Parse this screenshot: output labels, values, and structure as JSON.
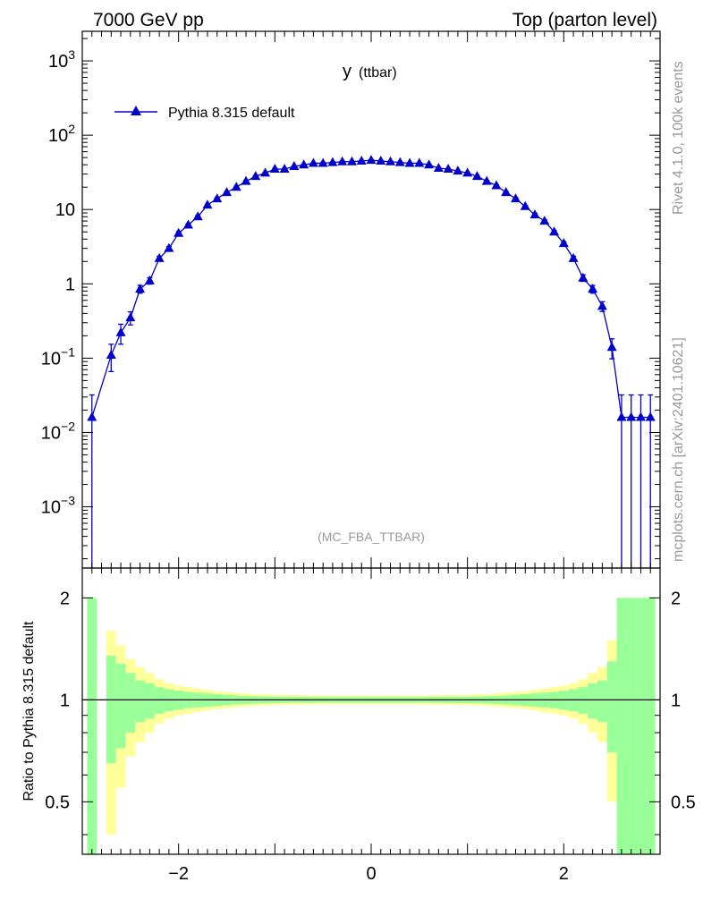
{
  "header": {
    "left": "7000 GeV pp",
    "right": "Top (parton level)"
  },
  "side_labels": {
    "rivet": "Rivet 4.1.0,  100k events",
    "mcplots": "mcplots.cern.ch [arXiv:2401.10621]"
  },
  "analysis_tag": "(MC_FBA_TTBAR)",
  "colors": {
    "series": "#0000cc",
    "band_inner": "#99ff99",
    "band_outer": "#ffff99",
    "axis": "#000000",
    "tag": "#999999"
  },
  "chart_data": [
    {
      "type": "line",
      "title_main": "y",
      "title_sub": "(ttbar)",
      "yscale": "log",
      "xlim": [
        -3.0,
        3.0
      ],
      "ylim": [
        0.00015,
        2500
      ],
      "y_ticks": [
        "10^3",
        "10^2",
        "10",
        "1",
        "10^-1",
        "10^-2",
        "10^-3"
      ],
      "legend": {
        "label": "Pythia 8.315 default",
        "position": "top-left"
      },
      "series": [
        {
          "name": "Pythia 8.315 default",
          "x": [
            -2.9,
            -2.7,
            -2.6,
            -2.5,
            -2.4,
            -2.3,
            -2.2,
            -2.1,
            -2.0,
            -1.9,
            -1.8,
            -1.7,
            -1.6,
            -1.5,
            -1.4,
            -1.3,
            -1.2,
            -1.1,
            -1.0,
            -0.9,
            -0.8,
            -0.7,
            -0.6,
            -0.5,
            -0.4,
            -0.3,
            -0.2,
            -0.1,
            0.0,
            0.1,
            0.2,
            0.3,
            0.4,
            0.5,
            0.6,
            0.7,
            0.8,
            0.9,
            1.0,
            1.1,
            1.2,
            1.3,
            1.4,
            1.5,
            1.6,
            1.7,
            1.8,
            1.9,
            2.0,
            2.1,
            2.2,
            2.3,
            2.4,
            2.5,
            2.6,
            2.7,
            2.8,
            2.9
          ],
          "values": [
            0.016,
            0.11,
            0.22,
            0.35,
            0.85,
            1.1,
            2.2,
            3.0,
            4.8,
            6.2,
            8.0,
            11.5,
            14.0,
            17.0,
            20.0,
            24.0,
            28.0,
            31.0,
            35.0,
            35.0,
            38.0,
            40.0,
            42.0,
            42.0,
            43.0,
            44.0,
            44.0,
            45.0,
            46.0,
            45.0,
            44.0,
            43.0,
            42.0,
            42.0,
            40.0,
            36.0,
            35.0,
            33.0,
            31.0,
            28.0,
            24.0,
            21.0,
            17.0,
            14.0,
            11.0,
            8.5,
            7.0,
            5.0,
            3.5,
            2.2,
            1.2,
            0.85,
            0.5,
            0.14,
            0.016,
            0.016,
            0.016,
            0.016
          ],
          "rel_err": [
            1.0,
            0.4,
            0.3,
            0.2,
            0.12,
            0.1,
            0.07,
            0.06,
            0.05,
            0.04,
            0.035,
            0.03,
            0.027,
            0.025,
            0.023,
            0.021,
            0.019,
            0.018,
            0.017,
            0.017,
            0.016,
            0.016,
            0.015,
            0.015,
            0.015,
            0.015,
            0.015,
            0.015,
            0.015,
            0.015,
            0.015,
            0.015,
            0.015,
            0.015,
            0.016,
            0.016,
            0.017,
            0.017,
            0.018,
            0.019,
            0.021,
            0.023,
            0.025,
            0.027,
            0.03,
            0.035,
            0.04,
            0.045,
            0.055,
            0.07,
            0.1,
            0.12,
            0.15,
            0.3,
            1.0,
            1.0,
            1.0,
            1.0
          ]
        }
      ]
    },
    {
      "type": "area",
      "ylabel": "Ratio to Pythia 8.315 default",
      "yscale": "log",
      "xlim": [
        -3.0,
        3.0
      ],
      "ylim": [
        0.35,
        2.45
      ],
      "x_ticks": [
        "-2",
        "0",
        "2"
      ],
      "y_ticks": [
        "2",
        "1",
        "0.5"
      ],
      "reference_line": 1,
      "bands": {
        "x": [
          -2.9,
          -2.7,
          -2.6,
          -2.5,
          -2.4,
          -2.3,
          -2.2,
          -2.1,
          -2.0,
          -1.9,
          -1.8,
          -1.7,
          -1.6,
          -1.5,
          -1.4,
          -1.3,
          -1.2,
          -1.1,
          -1.0,
          -0.9,
          -0.8,
          -0.7,
          -0.6,
          -0.5,
          -0.4,
          -0.3,
          -0.2,
          -0.1,
          0.0,
          0.1,
          0.2,
          0.3,
          0.4,
          0.5,
          0.6,
          0.7,
          0.8,
          0.9,
          1.0,
          1.1,
          1.2,
          1.3,
          1.4,
          1.5,
          1.6,
          1.7,
          1.8,
          1.9,
          2.0,
          2.1,
          2.2,
          2.3,
          2.4,
          2.5,
          2.6,
          2.7,
          2.8,
          2.9
        ],
        "inner_rel": [
          1.0,
          0.35,
          0.28,
          0.2,
          0.14,
          0.12,
          0.09,
          0.075,
          0.065,
          0.055,
          0.05,
          0.045,
          0.04,
          0.035,
          0.03,
          0.028,
          0.025,
          0.023,
          0.022,
          0.021,
          0.02,
          0.02,
          0.02,
          0.019,
          0.019,
          0.019,
          0.019,
          0.019,
          0.019,
          0.019,
          0.019,
          0.019,
          0.019,
          0.019,
          0.02,
          0.02,
          0.02,
          0.021,
          0.022,
          0.023,
          0.025,
          0.028,
          0.03,
          0.035,
          0.04,
          0.045,
          0.05,
          0.055,
          0.065,
          0.075,
          0.09,
          0.12,
          0.14,
          0.3,
          1.0,
          1.0,
          1.0,
          1.0
        ],
        "outer_rel": [
          1.0,
          0.6,
          0.45,
          0.32,
          0.25,
          0.2,
          0.15,
          0.12,
          0.1,
          0.09,
          0.08,
          0.07,
          0.06,
          0.055,
          0.05,
          0.045,
          0.04,
          0.038,
          0.036,
          0.034,
          0.033,
          0.032,
          0.031,
          0.03,
          0.03,
          0.03,
          0.03,
          0.03,
          0.03,
          0.03,
          0.03,
          0.03,
          0.03,
          0.03,
          0.031,
          0.032,
          0.033,
          0.034,
          0.036,
          0.038,
          0.04,
          0.045,
          0.05,
          0.055,
          0.06,
          0.07,
          0.08,
          0.09,
          0.1,
          0.12,
          0.15,
          0.2,
          0.25,
          0.5,
          1.0,
          1.0,
          1.0,
          1.0
        ]
      }
    }
  ]
}
